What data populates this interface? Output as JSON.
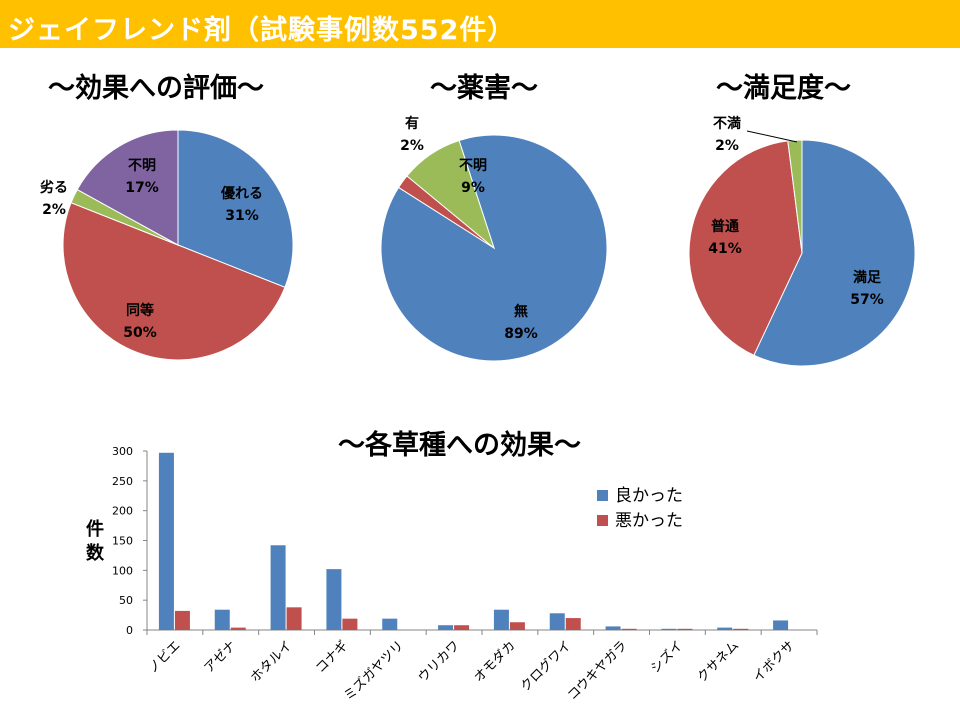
{
  "header": {
    "title": "ジェイフレンド剤（試験事例数552件）"
  },
  "chart_data": [
    {
      "type": "pie",
      "title": "～効果への評価～",
      "slices": [
        {
          "label": "優れる",
          "pct_label": "31%",
          "value": 31,
          "color": "#4f81bd"
        },
        {
          "label": "同等",
          "pct_label": "50%",
          "value": 50,
          "color": "#c0504d"
        },
        {
          "label": "劣る",
          "pct_label": "2%",
          "value": 2,
          "color": "#9bbb59"
        },
        {
          "label": "不明",
          "pct_label": "17%",
          "value": 17,
          "color": "#8064a2"
        }
      ]
    },
    {
      "type": "pie",
      "title": "～薬害～",
      "slices": [
        {
          "label": "無",
          "pct_label": "89%",
          "value": 89,
          "color": "#4f81bd"
        },
        {
          "label": "有",
          "pct_label": "2%",
          "value": 2,
          "color": "#c0504d"
        },
        {
          "label": "不明",
          "pct_label": "9%",
          "value": 9,
          "color": "#9bbb59"
        }
      ]
    },
    {
      "type": "pie",
      "title": "～満足度～",
      "slices": [
        {
          "label": "満足",
          "pct_label": "57%",
          "value": 57,
          "color": "#4f81bd"
        },
        {
          "label": "普通",
          "pct_label": "41%",
          "value": 41,
          "color": "#c0504d"
        },
        {
          "label": "不満",
          "pct_label": "2%",
          "value": 2,
          "color": "#9bbb59"
        }
      ]
    },
    {
      "type": "bar",
      "title": "～各草種への効果～",
      "ylabel": "件数",
      "ylim": [
        0,
        300
      ],
      "yticks": [
        0,
        50,
        100,
        150,
        200,
        250,
        300
      ],
      "legend_position": "right",
      "categories": [
        "ノビエ",
        "アゼナ",
        "ホタルイ",
        "コナギ",
        "ミズガヤツリ",
        "ウリカワ",
        "オモダカ",
        "クログワイ",
        "コウキヤガラ",
        "シズイ",
        "クサネム",
        "イボクサ"
      ],
      "series": [
        {
          "name": "良かった",
          "color": "#4f81bd",
          "values": [
            297,
            34,
            142,
            102,
            19,
            8,
            34,
            28,
            6,
            2,
            4,
            16
          ]
        },
        {
          "name": "悪かった",
          "color": "#c0504d",
          "values": [
            32,
            4,
            38,
            19,
            0,
            8,
            13,
            20,
            2,
            2,
            2,
            0
          ]
        }
      ]
    }
  ]
}
